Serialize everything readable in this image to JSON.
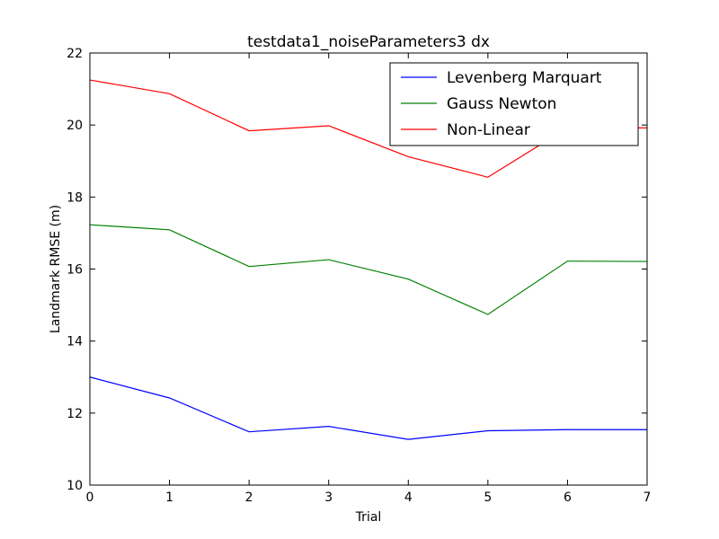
{
  "chart_data": {
    "type": "line",
    "title": "testdata1_noiseParameters3 dx",
    "xlabel": "Trial",
    "ylabel": "Landmark RMSE (m)",
    "xlim": [
      0,
      7
    ],
    "ylim": [
      10,
      22
    ],
    "x": [
      0,
      1,
      2,
      3,
      4,
      5,
      6,
      7
    ],
    "xticks": [
      "0",
      "1",
      "2",
      "3",
      "4",
      "5",
      "6",
      "7"
    ],
    "yticks": [
      "10",
      "12",
      "14",
      "16",
      "18",
      "20",
      "22"
    ],
    "grid": false,
    "legend_position": "upper-right",
    "series": [
      {
        "name": "Levenberg Marquart",
        "color": "#0000ff",
        "values": [
          13.0,
          12.42,
          11.48,
          11.63,
          11.27,
          11.51,
          11.54,
          11.54
        ]
      },
      {
        "name": "Gauss Newton",
        "color": "#008000",
        "values": [
          17.23,
          17.09,
          16.07,
          16.26,
          15.72,
          14.74,
          16.22,
          16.21
        ]
      },
      {
        "name": "Non-Linear",
        "color": "#ff0000",
        "values": [
          21.25,
          20.87,
          19.84,
          19.98,
          19.12,
          18.55,
          19.92,
          19.92
        ]
      }
    ]
  }
}
